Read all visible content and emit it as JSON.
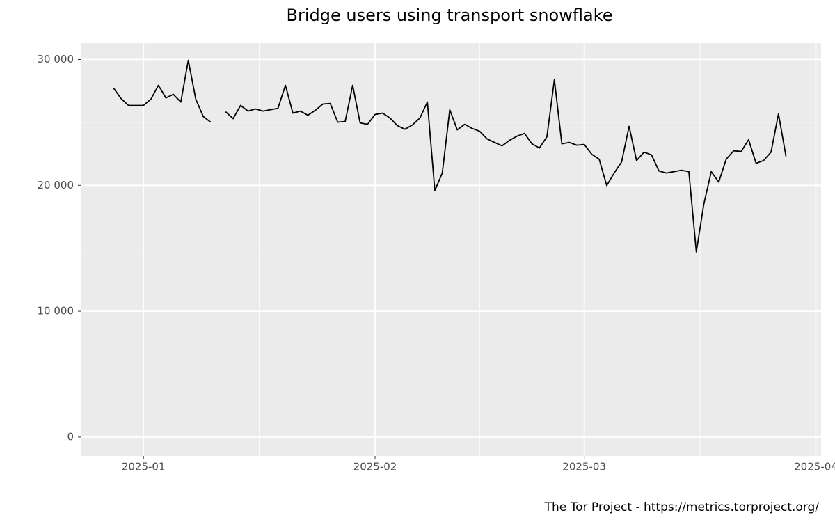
{
  "chart_data": {
    "type": "line",
    "title": "Bridge users using transport snowflake",
    "caption": "The Tor Project - https://metrics.torproject.org/",
    "x": [
      -4,
      -3,
      -2,
      -1,
      0,
      1,
      2,
      3,
      4,
      5,
      6,
      7,
      8,
      9,
      10,
      11,
      12,
      13,
      14,
      15,
      16,
      17,
      18,
      19,
      20,
      21,
      22,
      23,
      24,
      25,
      26,
      27,
      28,
      29,
      30,
      31,
      32,
      33,
      34,
      35,
      36,
      37,
      38,
      39,
      40,
      41,
      42,
      43,
      44,
      45,
      46,
      47,
      48,
      49,
      50,
      51,
      52,
      53,
      54,
      55,
      56,
      57,
      58,
      59,
      60,
      61,
      62,
      63,
      64,
      65,
      66,
      67,
      68,
      69,
      70,
      71,
      72,
      73,
      74,
      75,
      76,
      77,
      78,
      79,
      80,
      81,
      82,
      83,
      84,
      85,
      86
    ],
    "series": [
      {
        "name": "snowflake",
        "color": "#000000",
        "values": [
          27730,
          26900,
          26350,
          26350,
          26350,
          26850,
          27950,
          26950,
          27230,
          26620,
          29940,
          26850,
          25470,
          25020,
          null,
          25850,
          25300,
          26350,
          25900,
          26070,
          25900,
          26010,
          26120,
          27950,
          25740,
          25900,
          25570,
          25960,
          26460,
          26510,
          25020,
          25070,
          27950,
          24960,
          24850,
          25630,
          25740,
          25350,
          24740,
          24460,
          24800,
          25350,
          26620,
          19590,
          20980,
          26010,
          24410,
          24850,
          24520,
          24300,
          23690,
          23410,
          23140,
          23580,
          23910,
          24130,
          23300,
          22970,
          23860,
          28390,
          23300,
          23410,
          23190,
          23250,
          22470,
          22080,
          19980,
          20980,
          21860,
          24690,
          21970,
          22640,
          22420,
          21140,
          20980,
          21090,
          21200,
          21090,
          14720,
          18490,
          21090,
          20260,
          22080,
          22750,
          22690,
          23630,
          21750,
          21970,
          22640,
          25680,
          22310
        ]
      }
    ],
    "xlim": [
      -8.4,
      90.7
    ],
    "xticks": [
      {
        "value": 0,
        "label": "2025-01"
      },
      {
        "value": 31,
        "label": "2025-02"
      },
      {
        "value": 59,
        "label": "2025-03"
      },
      {
        "value": 90,
        "label": "2025-04"
      }
    ],
    "ylim": [
      -1500,
      31300
    ],
    "yticks": [
      0,
      {
        "value": 10000,
        "label": "10 000"
      },
      {
        "value": 20000,
        "label": "20 000"
      },
      {
        "value": 30000,
        "label": "30 000"
      }
    ],
    "grid": true
  }
}
